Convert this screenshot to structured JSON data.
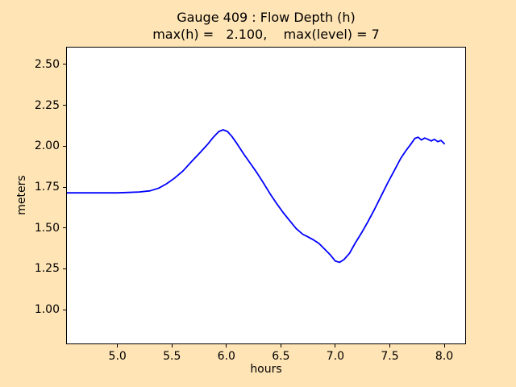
{
  "colors": {
    "figure_background": "#ffe4b5",
    "plot_background": "#ffffff",
    "line": "#0000ff",
    "text": "#000000",
    "spine": "#000000"
  },
  "chart_data": {
    "type": "line",
    "title": "Gauge 409 : Flow Depth (h)",
    "subtitle": "max(h) =   2.100,    max(level) = 7",
    "max_h": "2.100",
    "max_level": "7",
    "xlabel": "hours",
    "ylabel": "meters",
    "xlim": [
      4.536,
      8.192
    ],
    "ylim": [
      0.794,
      2.603
    ],
    "xticks": [
      5.0,
      5.5,
      6.0,
      6.5,
      7.0,
      7.5,
      8.0
    ],
    "xtick_labels": [
      "5.0",
      "5.5",
      "6.0",
      "6.5",
      "7.0",
      "7.5",
      "8.0"
    ],
    "yticks": [
      1.0,
      1.25,
      1.5,
      1.75,
      2.0,
      2.25,
      2.5
    ],
    "ytick_labels": [
      "1.00",
      "1.25",
      "1.50",
      "1.75",
      "2.00",
      "2.25",
      "2.50"
    ],
    "grid": false,
    "legend": null,
    "series": [
      {
        "name": "flow depth h",
        "x": [
          4.536,
          4.75,
          5.0,
          5.1,
          5.2,
          5.3,
          5.38,
          5.45,
          5.52,
          5.6,
          5.68,
          5.76,
          5.83,
          5.88,
          5.93,
          5.97,
          6.01,
          6.05,
          6.1,
          6.16,
          6.22,
          6.28,
          6.34,
          6.4,
          6.46,
          6.52,
          6.58,
          6.64,
          6.7,
          6.75,
          6.8,
          6.85,
          6.9,
          6.95,
          7.0,
          7.04,
          7.08,
          7.13,
          7.18,
          7.24,
          7.3,
          7.36,
          7.42,
          7.48,
          7.54,
          7.6,
          7.65,
          7.69,
          7.73,
          7.76,
          7.79,
          7.82,
          7.85,
          7.88,
          7.91,
          7.94,
          7.97,
          8.0
        ],
        "y": [
          1.715,
          1.715,
          1.715,
          1.717,
          1.72,
          1.727,
          1.744,
          1.77,
          1.803,
          1.848,
          1.906,
          1.962,
          2.013,
          2.055,
          2.09,
          2.1,
          2.09,
          2.06,
          2.013,
          1.952,
          1.895,
          1.838,
          1.775,
          1.71,
          1.65,
          1.595,
          1.545,
          1.497,
          1.462,
          1.445,
          1.427,
          1.405,
          1.372,
          1.338,
          1.298,
          1.29,
          1.307,
          1.345,
          1.405,
          1.47,
          1.54,
          1.615,
          1.695,
          1.775,
          1.85,
          1.925,
          1.975,
          2.01,
          2.048,
          2.055,
          2.038,
          2.05,
          2.042,
          2.032,
          2.042,
          2.028,
          2.035,
          2.015
        ]
      }
    ]
  }
}
